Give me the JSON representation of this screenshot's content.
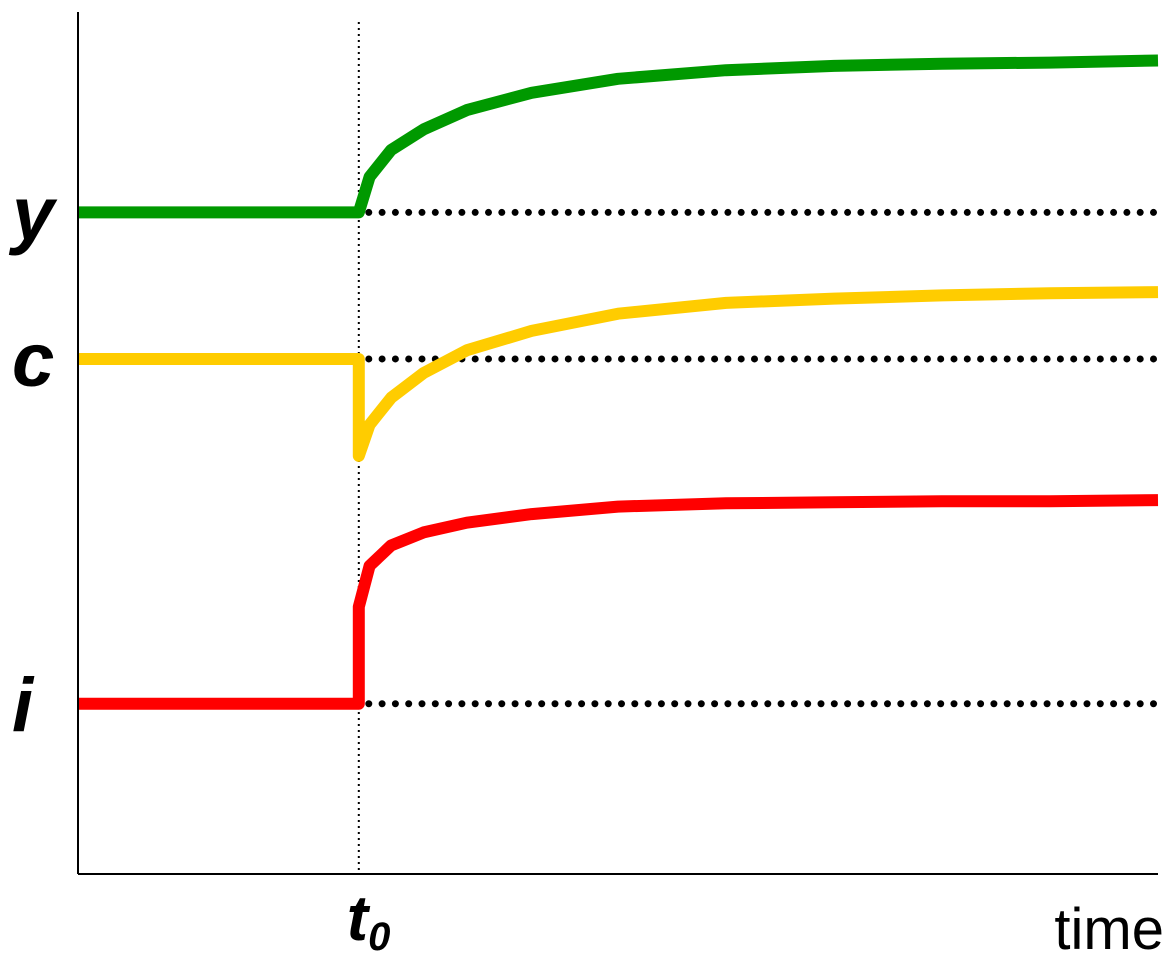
{
  "chart_data": {
    "type": "line",
    "title": "",
    "xlabel": "time",
    "ylabel": "",
    "x_marker": {
      "main": "t",
      "sub": "0",
      "x": 2.6
    },
    "xlim": [
      0,
      10
    ],
    "ylim": [
      0,
      8
    ],
    "grid": false,
    "legend": "none",
    "series": [
      {
        "name": "y",
        "color": "#009900",
        "baseline": 6.14,
        "x": [
          0,
          2.6,
          2.7,
          2.9,
          3.2,
          3.6,
          4.2,
          5.0,
          6.0,
          7.0,
          8.0,
          9.0,
          10.0
        ],
        "y": [
          6.14,
          6.14,
          6.47,
          6.72,
          6.91,
          7.09,
          7.25,
          7.38,
          7.46,
          7.5,
          7.52,
          7.53,
          7.55
        ]
      },
      {
        "name": "c",
        "color": "#FFCC00",
        "baseline": 4.78,
        "x": [
          0,
          2.6,
          2.6,
          2.7,
          2.9,
          3.2,
          3.6,
          4.2,
          5.0,
          6.0,
          7.0,
          8.0,
          9.0,
          10.0
        ],
        "y": [
          4.78,
          4.78,
          3.88,
          4.17,
          4.42,
          4.65,
          4.86,
          5.04,
          5.2,
          5.3,
          5.34,
          5.37,
          5.39,
          5.4
        ]
      },
      {
        "name": "i",
        "color": "#FF0000",
        "baseline": 1.58,
        "x": [
          0,
          2.6,
          2.6,
          2.7,
          2.9,
          3.2,
          3.6,
          4.2,
          5.0,
          6.0,
          7.0,
          8.0,
          9.0,
          10.0
        ],
        "y": [
          1.58,
          1.58,
          2.48,
          2.86,
          3.05,
          3.17,
          3.26,
          3.34,
          3.41,
          3.44,
          3.45,
          3.46,
          3.46,
          3.47
        ]
      }
    ]
  }
}
